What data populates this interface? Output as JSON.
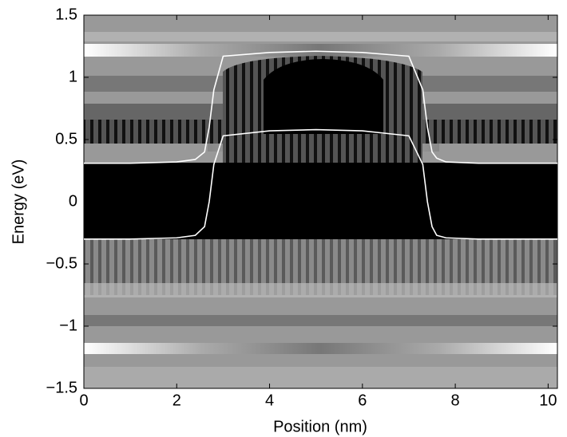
{
  "chart_data": {
    "type": "line",
    "x_label": "Position (nm)",
    "y_label": "Energy (eV)",
    "xlim": [
      0,
      10.2
    ],
    "ylim": [
      -1.5,
      1.5
    ],
    "xticks": [
      0,
      2,
      4,
      6,
      8,
      10
    ],
    "yticks": [
      {
        "value": -1.5,
        "label": "−1.5"
      },
      {
        "value": -1,
        "label": "−1"
      },
      {
        "value": -0.5,
        "label": "−0.5"
      },
      0,
      0.5,
      1,
      1.5
    ],
    "series": [
      {
        "color": "#ffffff",
        "x": [
          0,
          1,
          2,
          2.4,
          2.6,
          2.7,
          2.8,
          3.0,
          4,
          5,
          6,
          7.0,
          7.3,
          7.4,
          7.5,
          7.6,
          7.8,
          8.5,
          10.2
        ],
        "values": [
          0.31,
          0.31,
          0.32,
          0.34,
          0.4,
          0.6,
          0.9,
          1.17,
          1.2,
          1.21,
          1.2,
          1.17,
          0.9,
          0.6,
          0.4,
          0.35,
          0.32,
          0.31,
          0.31
        ]
      },
      {
        "color": "#ffffff",
        "x": [
          0,
          1,
          2,
          2.4,
          2.6,
          2.7,
          2.8,
          3.0,
          4,
          5,
          6,
          7.0,
          7.3,
          7.4,
          7.5,
          7.6,
          7.8,
          8.5,
          10.2
        ],
        "values": [
          -0.3,
          -0.3,
          -0.29,
          -0.27,
          -0.2,
          0,
          0.3,
          0.53,
          0.57,
          0.58,
          0.57,
          0.53,
          0.3,
          0,
          -0.2,
          -0.27,
          -0.29,
          -0.3,
          -0.3
        ]
      }
    ]
  }
}
